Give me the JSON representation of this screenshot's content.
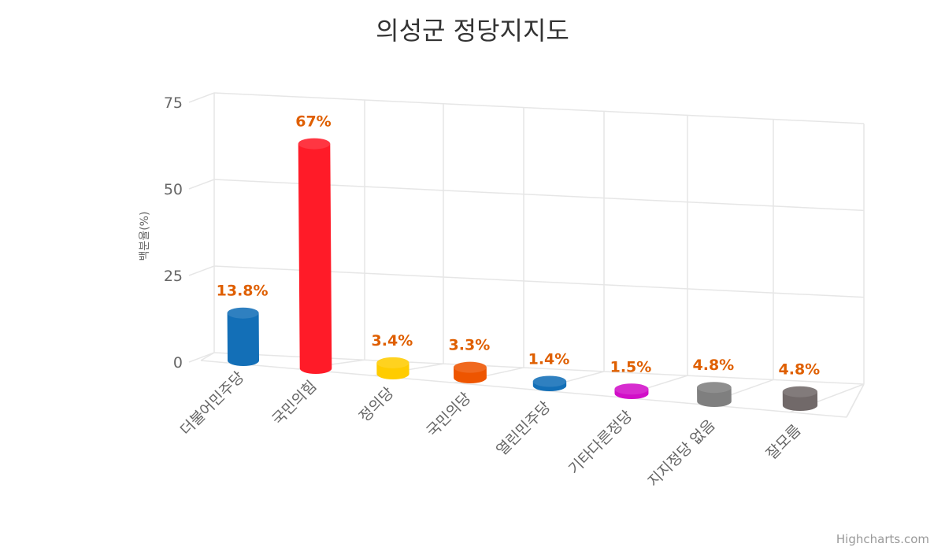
{
  "chart_data": {
    "type": "bar",
    "variant": "3d-cylinder",
    "title": "의성군 정당지지도",
    "ylabel": "백분율(%)",
    "xlabel": "",
    "ylim": [
      0,
      75
    ],
    "yticks": [
      0,
      25,
      50,
      75
    ],
    "grid": true,
    "legend": "none",
    "categories": [
      "더불어민주당",
      "국민의힘",
      "정의당",
      "국민의당",
      "열린민주당",
      "기타다른정당",
      "지지정당 없음",
      "잘모름"
    ],
    "values": [
      13.8,
      67,
      3.4,
      3.3,
      1.4,
      1.5,
      4.8,
      4.8
    ],
    "data_labels": [
      "13.8%",
      "67%",
      "3.4%",
      "3.3%",
      "1.4%",
      "1.5%",
      "4.8%",
      "4.8%"
    ],
    "colors": [
      "#136FB7",
      "#FF1B28",
      "#FFCC00",
      "#EE5500",
      "#136FB7",
      "#D10FC8",
      "#7F7F7F",
      "#716969"
    ],
    "data_label_color": "#DF5F00"
  },
  "credit": "Highcharts.com"
}
